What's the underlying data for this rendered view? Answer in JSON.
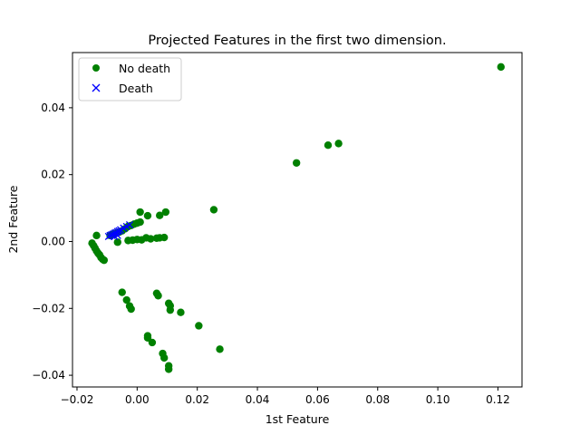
{
  "chart_data": {
    "type": "scatter",
    "title": "Projected Features in the first two dimension.",
    "xlabel": "1st Feature",
    "ylabel": "2nd Feature",
    "xlim": [
      -0.0215,
      0.128
    ],
    "ylim": [
      -0.0435,
      0.0565
    ],
    "xticks": [
      -0.02,
      0.0,
      0.02,
      0.04,
      0.06,
      0.08,
      0.1,
      0.12
    ],
    "xtick_labels": [
      "−0.02",
      "0.00",
      "0.02",
      "0.04",
      "0.06",
      "0.08",
      "0.10",
      "0.12"
    ],
    "yticks": [
      -0.04,
      -0.02,
      0.0,
      0.02,
      0.04
    ],
    "ytick_labels": [
      "−0.04",
      "−0.02",
      "0.00",
      "0.02",
      "0.04"
    ],
    "grid": false,
    "legend_position": "upper-left",
    "series": [
      {
        "name": "No death",
        "marker": "circle",
        "color": "#008000",
        "points": [
          [
            0.121,
            0.0522
          ],
          [
            0.067,
            0.0293
          ],
          [
            0.0635,
            0.0288
          ],
          [
            0.053,
            0.0235
          ],
          [
            0.0255,
            0.0095
          ],
          [
            0.0095,
            0.0088
          ],
          [
            0.0075,
            0.0078
          ],
          [
            0.0035,
            0.0077
          ],
          [
            0.001,
            0.0088
          ],
          [
            0.001,
            0.0058
          ],
          [
            0.0,
            0.0055
          ],
          [
            -0.001,
            0.0052
          ],
          [
            -0.002,
            0.0048
          ],
          [
            -0.003,
            0.0045
          ],
          [
            -0.004,
            0.0038
          ],
          [
            -0.005,
            0.0032
          ],
          [
            -0.006,
            0.0028
          ],
          [
            -0.007,
            0.0025
          ],
          [
            -0.008,
            0.0022
          ],
          [
            -0.009,
            0.0018
          ],
          [
            0.009,
            0.0012
          ],
          [
            0.0075,
            0.0011
          ],
          [
            0.0065,
            0.001
          ],
          [
            0.0045,
            0.0008
          ],
          [
            0.003,
            0.0011
          ],
          [
            0.0015,
            0.0005
          ],
          [
            0.0,
            0.0006
          ],
          [
            -0.0015,
            0.0004
          ],
          [
            -0.003,
            0.0003
          ],
          [
            -0.0065,
            -0.0002
          ],
          [
            -0.0135,
            0.0018
          ],
          [
            -0.015,
            -0.0005
          ],
          [
            -0.0145,
            -0.0012
          ],
          [
            -0.014,
            -0.002
          ],
          [
            -0.0135,
            -0.0028
          ],
          [
            -0.013,
            -0.0035
          ],
          [
            -0.0125,
            -0.004
          ],
          [
            -0.012,
            -0.0048
          ],
          [
            -0.0115,
            -0.0053
          ],
          [
            -0.011,
            -0.0056
          ],
          [
            -0.005,
            -0.0152
          ],
          [
            -0.0035,
            -0.0175
          ],
          [
            -0.0025,
            -0.0193
          ],
          [
            -0.002,
            -0.0202
          ],
          [
            0.0065,
            -0.0155
          ],
          [
            0.007,
            -0.0162
          ],
          [
            0.0105,
            -0.0185
          ],
          [
            0.011,
            -0.0192
          ],
          [
            0.011,
            -0.0205
          ],
          [
            0.0145,
            -0.0212
          ],
          [
            0.0205,
            -0.0252
          ],
          [
            0.0035,
            -0.0282
          ],
          [
            0.0035,
            -0.0288
          ],
          [
            0.005,
            -0.0302
          ],
          [
            0.0085,
            -0.0335
          ],
          [
            0.009,
            -0.0348
          ],
          [
            0.0275,
            -0.0322
          ],
          [
            0.0105,
            -0.0372
          ],
          [
            0.0105,
            -0.0382
          ]
        ]
      },
      {
        "name": "Death",
        "marker": "x",
        "color": "#0000ff",
        "points": [
          [
            -0.0095,
            0.0015
          ],
          [
            -0.009,
            0.0018
          ],
          [
            -0.0085,
            0.002
          ],
          [
            -0.008,
            0.0022
          ],
          [
            -0.0075,
            0.0025
          ],
          [
            -0.007,
            0.0027
          ],
          [
            -0.0065,
            0.003
          ],
          [
            -0.006,
            0.0032
          ],
          [
            -0.0055,
            0.0035
          ],
          [
            -0.0045,
            0.004
          ],
          [
            -0.0035,
            0.0045
          ],
          [
            -0.0025,
            0.005
          ],
          [
            -0.0075,
            0.0015
          ],
          [
            -0.0065,
            0.0018
          ]
        ]
      }
    ]
  }
}
